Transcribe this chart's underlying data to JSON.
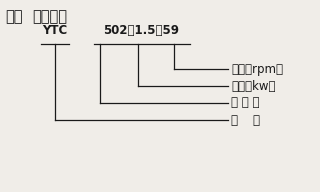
{
  "title_part1": "三、",
  "title_part2": "型号说明",
  "ytc_label": "YTC",
  "code_502": "502",
  "code_dash1": "－",
  "code_15": "1.5",
  "code_dash2": "－",
  "code_59": "59",
  "labels": [
    "转速（rpm）",
    "功率（kw）",
    "机 座 号",
    "型    号"
  ],
  "bg_color": "#f0ede8",
  "text_color": "#1a1a1a",
  "line_color": "#1a1a1a",
  "title_fontsize": 10.5,
  "body_fontsize": 8.5,
  "label_fontsize": 8.5
}
